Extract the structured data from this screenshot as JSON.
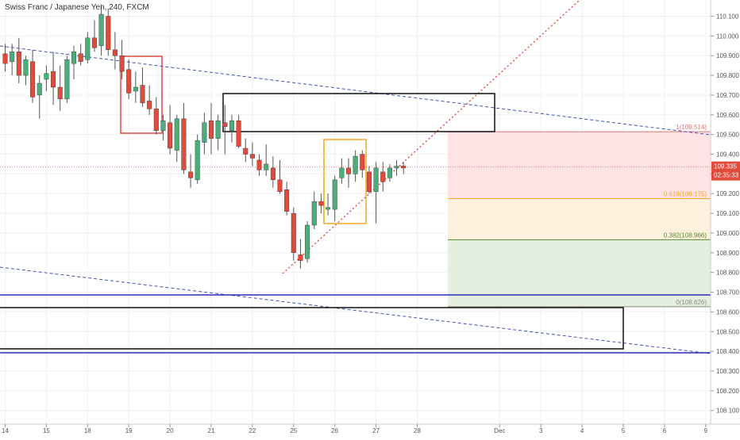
{
  "chart_data": {
    "type": "candlestick",
    "title": "Swiss Franc / Japanese Yen, 240, FXCM",
    "grid": true,
    "ylim": [
      108.04,
      110.18
    ],
    "y_ticks": [
      "110.100",
      "110.000",
      "109.900",
      "109.800",
      "109.700",
      "109.600",
      "109.500",
      "109.400",
      "109.300",
      "109.200",
      "109.100",
      "109.000",
      "108.900",
      "108.800",
      "108.700",
      "108.600",
      "108.500",
      "108.400",
      "108.300",
      "108.200",
      "108.100"
    ],
    "x_ticks": [
      {
        "label": "14",
        "bar": 0
      },
      {
        "label": "15",
        "bar": 6
      },
      {
        "label": "18",
        "bar": 12
      },
      {
        "label": "19",
        "bar": 18
      },
      {
        "label": "20",
        "bar": 24
      },
      {
        "label": "21",
        "bar": 30
      },
      {
        "label": "22",
        "bar": 36
      },
      {
        "label": "25",
        "bar": 42
      },
      {
        "label": "26",
        "bar": 48
      },
      {
        "label": "27",
        "bar": 54
      },
      {
        "label": "28",
        "bar": 60
      },
      {
        "label": "Dec",
        "bar": 72
      },
      {
        "label": "3",
        "bar": 78
      },
      {
        "label": "4",
        "bar": 84
      },
      {
        "label": "5",
        "bar": 90
      },
      {
        "label": "6",
        "bar": 96
      },
      {
        "label": "9",
        "bar": 102
      }
    ],
    "candles": [
      [
        109.91,
        109.96,
        109.82,
        109.86
      ],
      [
        109.87,
        109.96,
        109.8,
        109.92
      ],
      [
        109.92,
        109.99,
        109.76,
        109.8
      ],
      [
        109.8,
        109.9,
        109.75,
        109.88
      ],
      [
        109.87,
        109.93,
        109.66,
        109.69
      ],
      [
        109.7,
        109.8,
        109.58,
        109.76
      ],
      [
        109.78,
        109.85,
        109.72,
        109.81
      ],
      [
        109.82,
        109.92,
        109.65,
        109.74
      ],
      [
        109.74,
        109.85,
        109.62,
        109.68
      ],
      [
        109.68,
        109.9,
        109.66,
        109.88
      ],
      [
        109.86,
        109.95,
        109.78,
        109.92
      ],
      [
        109.91,
        109.96,
        109.85,
        109.87
      ],
      [
        109.88,
        110.02,
        109.86,
        109.99
      ],
      [
        109.99,
        110.08,
        109.92,
        109.94
      ],
      [
        109.95,
        110.16,
        109.9,
        110.11
      ],
      [
        110.1,
        110.14,
        109.9,
        109.93
      ],
      [
        109.93,
        110.02,
        109.83,
        109.9
      ],
      [
        109.9,
        109.98,
        109.78,
        109.82
      ],
      [
        109.83,
        109.88,
        109.68,
        109.71
      ],
      [
        109.72,
        109.82,
        109.66,
        109.74
      ],
      [
        109.75,
        109.84,
        109.64,
        109.66
      ],
      [
        109.67,
        109.75,
        109.6,
        109.63
      ],
      [
        109.63,
        109.69,
        109.5,
        109.52
      ],
      [
        109.52,
        109.6,
        109.47,
        109.57
      ],
      [
        109.56,
        109.65,
        109.4,
        109.43
      ],
      [
        109.42,
        109.6,
        109.36,
        109.58
      ],
      [
        109.58,
        109.66,
        109.3,
        109.32
      ],
      [
        109.31,
        109.4,
        109.23,
        109.28
      ],
      [
        109.27,
        109.5,
        109.25,
        109.47
      ],
      [
        109.46,
        109.61,
        109.4,
        109.56
      ],
      [
        109.57,
        109.66,
        109.4,
        109.48
      ],
      [
        109.48,
        109.6,
        109.42,
        109.57
      ],
      [
        109.56,
        109.65,
        109.4,
        109.54
      ],
      [
        109.52,
        109.6,
        109.46,
        109.57
      ],
      [
        109.57,
        109.6,
        109.43,
        109.44
      ],
      [
        109.43,
        109.48,
        109.36,
        109.4
      ],
      [
        109.4,
        109.46,
        109.34,
        109.38
      ],
      [
        109.37,
        109.4,
        109.29,
        109.32
      ],
      [
        109.32,
        109.45,
        109.29,
        109.35
      ],
      [
        109.33,
        109.39,
        109.23,
        109.27
      ],
      [
        109.27,
        109.37,
        109.2,
        109.21
      ],
      [
        109.22,
        109.26,
        109.09,
        109.11
      ],
      [
        109.1,
        109.13,
        108.86,
        108.9
      ],
      [
        108.89,
        108.97,
        108.82,
        108.86
      ],
      [
        108.87,
        109.06,
        108.85,
        109.04
      ],
      [
        109.04,
        109.21,
        109.02,
        109.16
      ],
      [
        109.16,
        109.2,
        109.1,
        109.14
      ],
      [
        109.12,
        109.2,
        109.09,
        109.13
      ],
      [
        109.12,
        109.29,
        109.06,
        109.27
      ],
      [
        109.28,
        109.38,
        109.25,
        109.33
      ],
      [
        109.33,
        109.38,
        109.23,
        109.3
      ],
      [
        109.3,
        109.42,
        109.26,
        109.39
      ],
      [
        109.4,
        109.42,
        109.28,
        109.32
      ],
      [
        109.31,
        109.34,
        109.2,
        109.21
      ],
      [
        109.21,
        109.36,
        109.05,
        109.33
      ],
      [
        109.31,
        109.36,
        109.21,
        109.26
      ],
      [
        109.28,
        109.35,
        109.26,
        109.33
      ],
      [
        109.33,
        109.37,
        109.29,
        109.34
      ],
      [
        109.34,
        109.36,
        109.3,
        109.33
      ]
    ],
    "current_price": "109.335",
    "countdown": "02:35:33",
    "fib_levels": [
      {
        "ratio": "1",
        "price": "109.514",
        "value": 109.514,
        "color": "#e57373"
      },
      {
        "ratio": "0.618",
        "price": "109.175",
        "value": 109.175,
        "color": "#f5a623"
      },
      {
        "ratio": "0.382",
        "price": "108.966",
        "value": 108.966,
        "color": "#558b2f"
      },
      {
        "ratio": "0",
        "price": "108.626",
        "value": 108.626,
        "color": "#888888"
      }
    ],
    "colors": {
      "bull": "#4caf7a",
      "bear": "#e04b3c",
      "wick": "#555555",
      "price_line": "#e57373",
      "price_label": "#e04b3c",
      "trendline_dashed": "#3f51b5",
      "trendline_dotted": "#e04b3c",
      "hline": "#2b2bb8",
      "fib_red": "#fde3e3",
      "fib_orange": "#fdf0dd",
      "fib_green": "#e4efdf",
      "box_red": "#e04b3c",
      "box_orange": "#f5a623",
      "box_black": "#111111"
    }
  }
}
